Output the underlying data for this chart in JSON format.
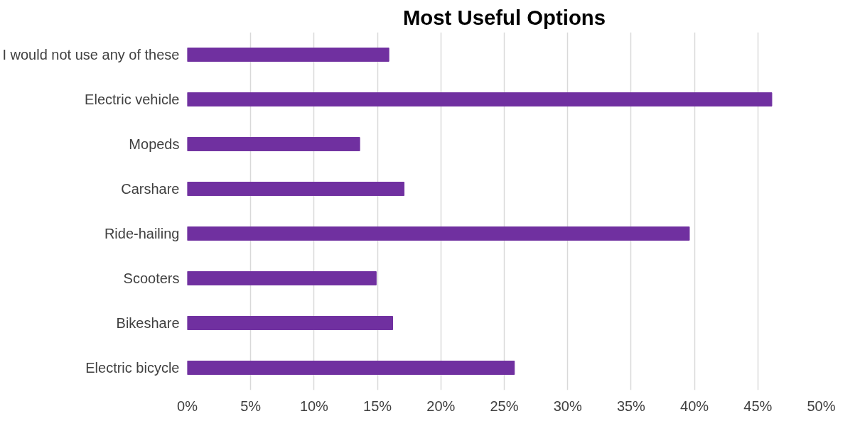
{
  "chart_data": {
    "type": "bar",
    "orientation": "horizontal",
    "title": "Most Useful Options",
    "categories": [
      "I would not use any of these",
      "Electric vehicle",
      "Mopeds",
      "Carshare",
      "Ride-hailing",
      "Scooters",
      "Bikeshare",
      "Electric bicycle"
    ],
    "values": [
      15.9,
      46.1,
      13.6,
      17.1,
      39.6,
      14.9,
      16.2,
      25.8
    ],
    "color": "#7030a0",
    "xlim": [
      0,
      50
    ],
    "xticks": [
      {
        "value": 0,
        "label": "0%"
      },
      {
        "value": 5,
        "label": "5%"
      },
      {
        "value": 10,
        "label": "10%"
      },
      {
        "value": 15,
        "label": "15%"
      },
      {
        "value": 20,
        "label": "20%"
      },
      {
        "value": 25,
        "label": "25%"
      },
      {
        "value": 30,
        "label": "30%"
      },
      {
        "value": 35,
        "label": "35%"
      },
      {
        "value": 40,
        "label": "40%"
      },
      {
        "value": 45,
        "label": "45%"
      },
      {
        "value": 50,
        "label": "50%"
      }
    ],
    "grid": "x"
  }
}
